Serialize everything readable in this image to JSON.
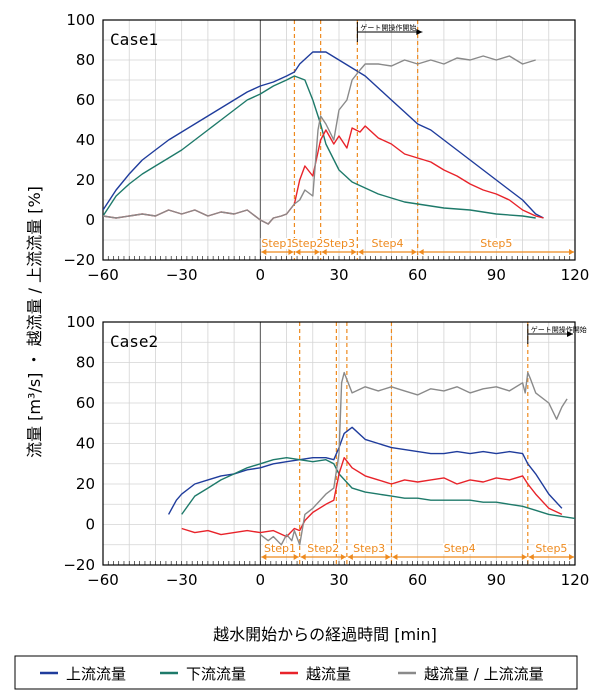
{
  "chart_data": {
    "type": "line",
    "ylabel": "流量 [m³/s] ・ 越流量 / 上流流量 [%]",
    "xlabel": "越水開始からの経過時間 [min]",
    "legend_position": "bottom",
    "colors": {
      "up": "#1f3c9c",
      "down": "#1e7a6a",
      "over": "#e8232a",
      "ratio": "#8a8a8a",
      "step": "#ee8a1e"
    },
    "series_names": [
      "上流流量",
      "下流流量",
      "越流量",
      "越流量 / 上流流量"
    ],
    "panels": [
      {
        "title": "Case1",
        "xlim": [
          -60,
          120
        ],
        "ylim": [
          -20,
          100
        ],
        "xticks": [
          -60,
          -30,
          0,
          30,
          60,
          90,
          120
        ],
        "yticks": [
          -20,
          0,
          20,
          40,
          60,
          80,
          100
        ],
        "note": "ゲート開操作開始",
        "gate_start": 37,
        "step_lines": [
          13,
          23,
          37,
          60
        ],
        "steps": [
          {
            "label": "Step1",
            "from": 0,
            "to": 13
          },
          {
            "label": "Step2",
            "from": 13,
            "to": 23
          },
          {
            "label": "Step3",
            "from": 23,
            "to": 37
          },
          {
            "label": "Step4",
            "from": 37,
            "to": 60
          },
          {
            "label": "Step5",
            "from": 60,
            "to": 120
          }
        ],
        "series": [
          {
            "key": "up",
            "name": "上流流量",
            "x": [
              -60,
              -55,
              -50,
              -45,
              -40,
              -35,
              -30,
              -25,
              -20,
              -15,
              -10,
              -5,
              0,
              5,
              10,
              13,
              15,
              20,
              23,
              25,
              30,
              35,
              40,
              45,
              50,
              55,
              60,
              65,
              70,
              75,
              80,
              85,
              90,
              95,
              100,
              105,
              108
            ],
            "y": [
              5,
              15,
              23,
              30,
              35,
              40,
              44,
              48,
              52,
              56,
              60,
              64,
              67,
              69,
              72,
              74,
              78,
              84,
              84,
              84,
              80,
              76,
              72,
              66,
              60,
              54,
              48,
              45,
              40,
              35,
              30,
              25,
              20,
              15,
              10,
              3,
              1
            ]
          },
          {
            "key": "down",
            "name": "下流流量",
            "x": [
              -60,
              -55,
              -50,
              -45,
              -40,
              -35,
              -30,
              -25,
              -20,
              -15,
              -10,
              -5,
              0,
              5,
              10,
              13,
              15,
              17,
              20,
              23,
              25,
              30,
              35,
              40,
              45,
              50,
              55,
              60,
              65,
              70,
              80,
              90,
              100,
              105
            ],
            "y": [
              2,
              12,
              18,
              23,
              27,
              31,
              35,
              40,
              45,
              50,
              55,
              60,
              63,
              67,
              70,
              72,
              71,
              70,
              60,
              48,
              38,
              25,
              19,
              16,
              13,
              11,
              9,
              8,
              7,
              6,
              5,
              3,
              2,
              1
            ]
          },
          {
            "key": "over",
            "name": "越流量",
            "x": [
              -60,
              -55,
              -50,
              -45,
              -40,
              -35,
              -30,
              -25,
              -20,
              -15,
              -10,
              -5,
              0,
              3,
              5,
              8,
              10,
              13,
              15,
              17,
              20,
              23,
              25,
              28,
              30,
              33,
              35,
              38,
              40,
              45,
              50,
              55,
              60,
              65,
              70,
              75,
              80,
              85,
              90,
              95,
              100,
              105,
              108
            ],
            "y": [
              2,
              1,
              2,
              3,
              2,
              5,
              3,
              5,
              2,
              4,
              3,
              5,
              0,
              -2,
              1,
              2,
              3,
              8,
              20,
              27,
              22,
              40,
              45,
              38,
              42,
              36,
              46,
              44,
              47,
              41,
              38,
              33,
              31,
              29,
              25,
              22,
              18,
              15,
              13,
              10,
              5,
              2,
              1
            ]
          },
          {
            "key": "ratio",
            "name": "越流量 / 上流流量",
            "x": [
              -60,
              -55,
              -50,
              -45,
              -40,
              -35,
              -30,
              -25,
              -20,
              -15,
              -10,
              -5,
              0,
              3,
              5,
              8,
              10,
              13,
              15,
              17,
              20,
              22,
              23,
              25,
              28,
              30,
              33,
              35,
              38,
              40,
              45,
              50,
              55,
              60,
              65,
              70,
              75,
              80,
              85,
              90,
              95,
              100,
              105
            ],
            "y": [
              2,
              1,
              2,
              3,
              2,
              5,
              3,
              5,
              2,
              4,
              3,
              5,
              0,
              -2,
              1,
              2,
              3,
              8,
              10,
              15,
              12,
              45,
              52,
              48,
              40,
              55,
              60,
              70,
              75,
              78,
              78,
              77,
              80,
              78,
              80,
              78,
              81,
              80,
              82,
              80,
              82,
              78,
              80
            ]
          }
        ]
      },
      {
        "title": "Case2",
        "xlim": [
          -60,
          120
        ],
        "ylim": [
          -20,
          100
        ],
        "xticks": [
          -60,
          -30,
          0,
          30,
          60,
          90,
          120
        ],
        "yticks": [
          -20,
          0,
          20,
          40,
          60,
          80,
          100
        ],
        "note": "ゲート開操作開始",
        "gate_start": 102,
        "step_lines": [
          15,
          29,
          33,
          50,
          102
        ],
        "steps": [
          {
            "label": "Step1",
            "from": 0,
            "to": 15
          },
          {
            "label": "Step2",
            "from": 15,
            "to": 33
          },
          {
            "label": "Step3",
            "from": 33,
            "to": 50
          },
          {
            "label": "Step4",
            "from": 50,
            "to": 102
          },
          {
            "label": "Step5",
            "from": 102,
            "to": 120
          }
        ],
        "series": [
          {
            "key": "up",
            "name": "上流流量",
            "x": [
              -35,
              -32,
              -30,
              -25,
              -20,
              -15,
              -10,
              -5,
              0,
              5,
              10,
              15,
              20,
              25,
              28,
              30,
              32,
              35,
              40,
              45,
              50,
              55,
              60,
              65,
              70,
              75,
              80,
              85,
              90,
              95,
              100,
              102,
              105,
              110,
              115
            ],
            "y": [
              5,
              12,
              15,
              20,
              22,
              24,
              25,
              27,
              28,
              30,
              31,
              32,
              33,
              33,
              32,
              38,
              45,
              48,
              42,
              40,
              38,
              37,
              36,
              35,
              35,
              36,
              35,
              36,
              35,
              36,
              35,
              30,
              25,
              15,
              8
            ]
          },
          {
            "key": "down",
            "name": "下流流量",
            "x": [
              -30,
              -25,
              -20,
              -15,
              -10,
              -5,
              0,
              5,
              10,
              15,
              20,
              25,
              28,
              30,
              35,
              40,
              45,
              50,
              55,
              60,
              65,
              70,
              75,
              80,
              85,
              90,
              95,
              100,
              105,
              110,
              115,
              120
            ],
            "y": [
              5,
              14,
              18,
              22,
              25,
              28,
              30,
              32,
              33,
              32,
              31,
              32,
              30,
              25,
              18,
              16,
              15,
              14,
              13,
              13,
              12,
              12,
              12,
              12,
              11,
              11,
              10,
              9,
              7,
              5,
              4,
              3
            ]
          },
          {
            "key": "over",
            "name": "越流量",
            "x": [
              -30,
              -25,
              -20,
              -15,
              -10,
              -5,
              0,
              5,
              10,
              13,
              15,
              17,
              20,
              25,
              28,
              30,
              32,
              35,
              40,
              45,
              50,
              55,
              60,
              65,
              70,
              75,
              80,
              85,
              90,
              95,
              100,
              102,
              105,
              110,
              115
            ],
            "y": [
              -2,
              -4,
              -3,
              -5,
              -4,
              -3,
              -4,
              -3,
              -6,
              -2,
              -3,
              2,
              6,
              10,
              12,
              25,
              33,
              28,
              24,
              22,
              20,
              22,
              21,
              22,
              23,
              20,
              22,
              21,
              23,
              22,
              24,
              20,
              15,
              8,
              5
            ]
          },
          {
            "key": "ratio",
            "name": "越流量 / 上流流量",
            "x": [
              0,
              3,
              5,
              8,
              10,
              12,
              13,
              15,
              17,
              20,
              25,
              28,
              30,
              31,
              32,
              35,
              40,
              45,
              50,
              55,
              60,
              65,
              70,
              75,
              80,
              85,
              90,
              95,
              100,
              101,
              102,
              103,
              105,
              110,
              113,
              115,
              117
            ],
            "y": [
              -5,
              -8,
              -6,
              -10,
              -5,
              -8,
              -3,
              -10,
              5,
              8,
              15,
              18,
              35,
              70,
              75,
              65,
              68,
              66,
              68,
              66,
              64,
              67,
              66,
              68,
              65,
              67,
              68,
              66,
              70,
              65,
              75,
              72,
              65,
              60,
              52,
              58,
              62
            ]
          }
        ]
      }
    ]
  },
  "ui": {
    "ylabel": "流量 [m³/s] ・ 越流量 / 上流流量 [%]",
    "xlabel": "越水開始からの経過時間 [min]",
    "legend": [
      "上流流量",
      "下流流量",
      "越流量",
      "越流量 / 上流流量"
    ]
  }
}
